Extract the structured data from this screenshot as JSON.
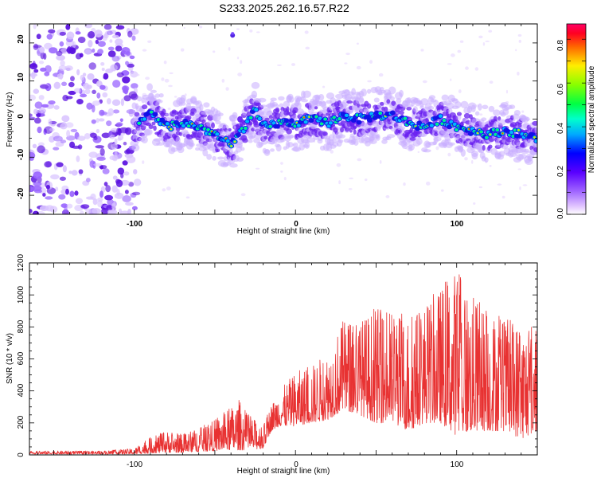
{
  "title": "S233.2025.262.16.57.R22",
  "chart_data": [
    {
      "type": "heatmap",
      "xlabel": "Height of straight line (km)",
      "ylabel": "Frequency (Hz)",
      "xlim": [
        -165,
        150
      ],
      "ylim": [
        -25,
        25
      ],
      "xticks": [
        "-100",
        "0",
        "100"
      ],
      "yticks": [
        "20",
        "10",
        "0",
        "-10",
        "-20"
      ],
      "colorbar": {
        "label": "Normalized spectral amplitude",
        "range": [
          0.0,
          0.87
        ],
        "ticks": [
          "0.8",
          "0.6",
          "0.4",
          "0.2",
          "0.0"
        ]
      },
      "ridge_trace": [
        {
          "x": -100,
          "y": -3
        },
        {
          "x": -90,
          "y": 2
        },
        {
          "x": -80,
          "y": -2
        },
        {
          "x": -70,
          "y": -1
        },
        {
          "x": -60,
          "y": -2
        },
        {
          "x": -50,
          "y": -4
        },
        {
          "x": -40,
          "y": -7
        },
        {
          "x": -30,
          "y": -1
        },
        {
          "x": -25,
          "y": 2
        },
        {
          "x": -20,
          "y": -2
        },
        {
          "x": -10,
          "y": -1
        },
        {
          "x": 0,
          "y": -1
        },
        {
          "x": 10,
          "y": 0
        },
        {
          "x": 20,
          "y": -1
        },
        {
          "x": 30,
          "y": 1
        },
        {
          "x": 40,
          "y": 0
        },
        {
          "x": 50,
          "y": 1
        },
        {
          "x": 60,
          "y": 1
        },
        {
          "x": 70,
          "y": -1
        },
        {
          "x": 80,
          "y": -2
        },
        {
          "x": 90,
          "y": 0
        },
        {
          "x": 100,
          "y": -2
        },
        {
          "x": 110,
          "y": -3
        },
        {
          "x": 120,
          "y": -4
        },
        {
          "x": 130,
          "y": -3
        },
        {
          "x": 140,
          "y": -4
        },
        {
          "x": 148,
          "y": -5
        }
      ]
    },
    {
      "type": "line",
      "xlabel": "Height of straight line (km)",
      "ylabel": "SNR (10 * v/v)",
      "xlim": [
        -165,
        150
      ],
      "ylim": [
        0,
        1200
      ],
      "xticks": [
        "-100",
        "0",
        "100"
      ],
      "yticks": [
        "1200",
        "1000",
        "800",
        "600",
        "400",
        "200",
        "0"
      ],
      "series": [
        {
          "name": "SNR",
          "color": "#e83232",
          "envelope": [
            {
              "x": -165,
              "low": 5,
              "high": 25
            },
            {
              "x": -120,
              "low": 5,
              "high": 25
            },
            {
              "x": -100,
              "low": 5,
              "high": 40
            },
            {
              "x": -90,
              "low": 10,
              "high": 110
            },
            {
              "x": -80,
              "low": 15,
              "high": 150
            },
            {
              "x": -70,
              "low": 15,
              "high": 130
            },
            {
              "x": -60,
              "low": 20,
              "high": 170
            },
            {
              "x": -50,
              "low": 25,
              "high": 220
            },
            {
              "x": -40,
              "low": 30,
              "high": 300
            },
            {
              "x": -35,
              "low": 30,
              "high": 350
            },
            {
              "x": -30,
              "low": 30,
              "high": 260
            },
            {
              "x": -20,
              "low": 40,
              "high": 180
            },
            {
              "x": -15,
              "low": 150,
              "high": 320
            },
            {
              "x": -10,
              "low": 180,
              "high": 400
            },
            {
              "x": 0,
              "low": 180,
              "high": 520
            },
            {
              "x": 10,
              "low": 200,
              "high": 560
            },
            {
              "x": 20,
              "low": 220,
              "high": 650
            },
            {
              "x": 30,
              "low": 280,
              "high": 850
            },
            {
              "x": 40,
              "low": 250,
              "high": 850
            },
            {
              "x": 50,
              "low": 200,
              "high": 920
            },
            {
              "x": 60,
              "low": 200,
              "high": 900
            },
            {
              "x": 70,
              "low": 150,
              "high": 880
            },
            {
              "x": 80,
              "low": 200,
              "high": 950
            },
            {
              "x": 90,
              "low": 200,
              "high": 1050
            },
            {
              "x": 100,
              "low": 120,
              "high": 1180
            },
            {
              "x": 110,
              "low": 150,
              "high": 1000
            },
            {
              "x": 120,
              "low": 150,
              "high": 920
            },
            {
              "x": 130,
              "low": 150,
              "high": 850
            },
            {
              "x": 140,
              "low": 100,
              "high": 840
            },
            {
              "x": 150,
              "low": 150,
              "high": 800
            }
          ]
        }
      ]
    }
  ]
}
